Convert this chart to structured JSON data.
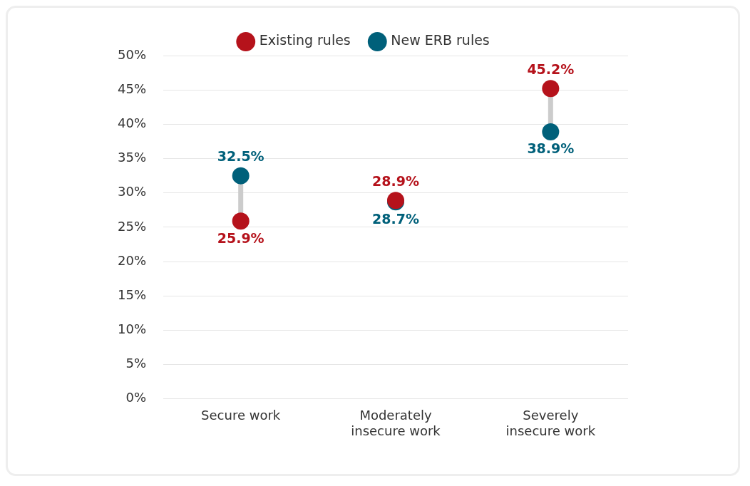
{
  "chart_data": {
    "type": "scatter",
    "categories": [
      "Secure work",
      "Moderately insecure work",
      "Severely insecure work"
    ],
    "series": [
      {
        "name": "Existing rules",
        "color": "#b5121b",
        "values": [
          25.9,
          28.9,
          45.2
        ],
        "value_labels": [
          "25.9%",
          "28.9%",
          "45.2%"
        ]
      },
      {
        "name": "New ERB rules",
        "color": "#00607a",
        "values": [
          32.5,
          28.7,
          38.9
        ],
        "value_labels": [
          "32.5%",
          "28.7%",
          "38.9%"
        ]
      }
    ],
    "ylim": [
      0,
      50
    ],
    "yticks": [
      {
        "value": 0,
        "label": "0%"
      },
      {
        "value": 5,
        "label": "5%"
      },
      {
        "value": 10,
        "label": "10%"
      },
      {
        "value": 15,
        "label": "15%"
      },
      {
        "value": 20,
        "label": "20%"
      },
      {
        "value": 25,
        "label": "25%"
      },
      {
        "value": 30,
        "label": "30%"
      },
      {
        "value": 35,
        "label": "35%"
      },
      {
        "value": 40,
        "label": "40%"
      },
      {
        "value": 45,
        "label": "45%"
      },
      {
        "value": 50,
        "label": "50%"
      }
    ],
    "grid": "y",
    "legend": "top",
    "marker": "circle"
  }
}
